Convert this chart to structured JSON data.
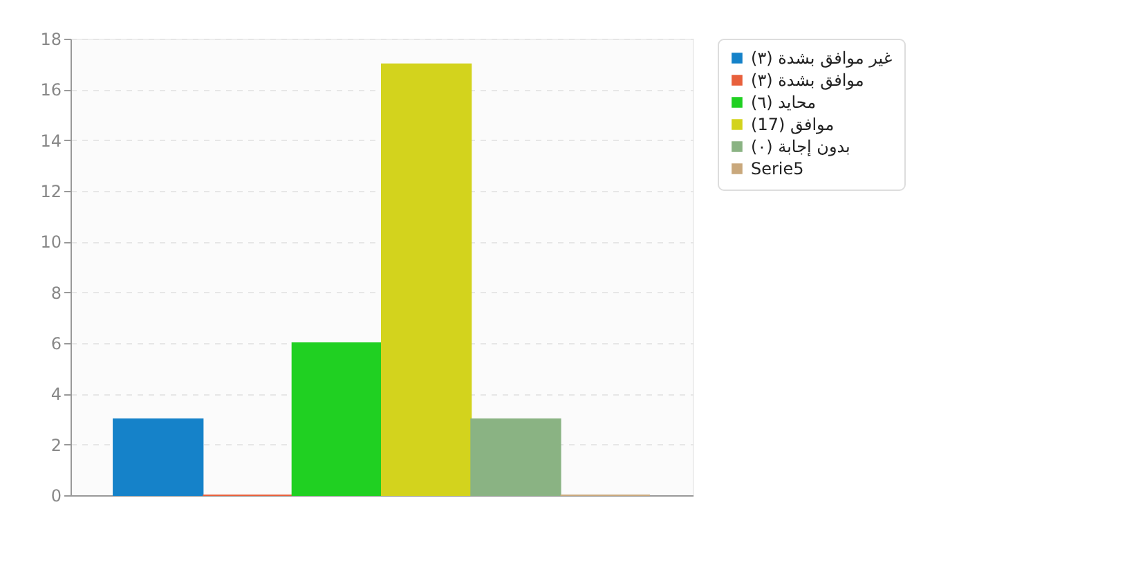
{
  "chart_data": {
    "type": "bar",
    "categories": [
      null
    ],
    "series": [
      {
        "name": "غير موافق بشدة (٣)",
        "color": "#1582c9",
        "values": [
          3
        ]
      },
      {
        "name": "موافق بشدة (٣)",
        "color": "#e8603c",
        "values": [
          0
        ]
      },
      {
        "name": "محايد (٦)",
        "color": "#20d022",
        "values": [
          6
        ]
      },
      {
        "name": "موافق (17)",
        "color": "#d3d31d",
        "values": [
          17
        ]
      },
      {
        "name": "بدون إجابة (٠)",
        "color": "#8ab383",
        "values": [
          3
        ]
      },
      {
        "name": "Serie5",
        "color": "#c9a87c",
        "values": [
          0
        ]
      }
    ],
    "ylim": [
      0,
      18
    ],
    "yticks": [
      0,
      2,
      4,
      6,
      8,
      10,
      12,
      14,
      16,
      18
    ],
    "grid": "y",
    "legend": "top right"
  }
}
